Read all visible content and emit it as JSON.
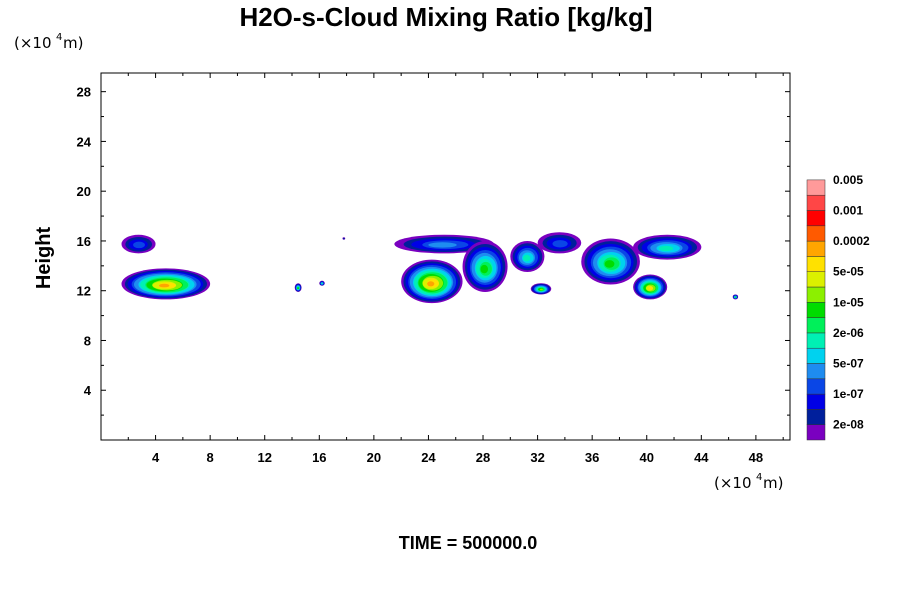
{
  "chart_data": {
    "type": "heatmap",
    "title": "H2O-s-Cloud Mixing Ratio [kg/kg]",
    "xlabel": "",
    "ylabel": "Height",
    "x_unit": {
      "prefix": "(×10",
      "exponent": "4",
      "suffix": " m)"
    },
    "y_unit": {
      "prefix": "(×10",
      "exponent": "4",
      "suffix": " m)"
    },
    "xlim": [
      0,
      50.5
    ],
    "ylim": [
      0,
      29.5
    ],
    "x_ticks": [
      4,
      8,
      12,
      16,
      20,
      24,
      28,
      32,
      36,
      40,
      44,
      48
    ],
    "y_ticks": [
      4,
      8,
      12,
      16,
      20,
      24,
      28
    ],
    "grid": false,
    "legend_position": "right",
    "colorbar": {
      "colors": [
        "#7a00c0",
        "#001f9c",
        "#0000e6",
        "#0a46e6",
        "#1e8cf0",
        "#00d2ef",
        "#00f0b4",
        "#00f05a",
        "#00dc00",
        "#8cf000",
        "#dcf000",
        "#ffe100",
        "#ffa500",
        "#ff5a00",
        "#ff0000",
        "#ff4646",
        "#ff9a9a"
      ],
      "labels": [
        "2e-08",
        "1e-07",
        "5e-07",
        "2e-06",
        "1e-05",
        "5e-05",
        "0.0002",
        "0.001",
        "0.005"
      ]
    },
    "regions": [
      {
        "x": [
          1.5,
          4.0
        ],
        "y": [
          15.0,
          16.5
        ],
        "peak_level": 3
      },
      {
        "x": [
          1.5,
          8.0
        ],
        "y": [
          11.3,
          13.8
        ],
        "peak_level": 12
      },
      {
        "x": [
          14.2,
          14.7
        ],
        "y": [
          11.9,
          12.6
        ],
        "peak_level": 8
      },
      {
        "x": [
          16.0,
          16.4
        ],
        "y": [
          12.4,
          12.8
        ],
        "peak_level": 6
      },
      {
        "x": [
          17.7,
          17.9
        ],
        "y": [
          16.1,
          16.3
        ],
        "peak_level": 1
      },
      {
        "x": [
          21.5,
          28.8
        ],
        "y": [
          15.0,
          16.5
        ],
        "peak_level": 4
      },
      {
        "x": [
          22.0,
          26.5
        ],
        "y": [
          11.0,
          14.5
        ],
        "peak_level": 12
      },
      {
        "x": [
          26.5,
          29.8
        ],
        "y": [
          11.9,
          16.0
        ],
        "peak_level": 8
      },
      {
        "x": [
          30.0,
          32.5
        ],
        "y": [
          13.5,
          16.0
        ],
        "peak_level": 6
      },
      {
        "x": [
          32.0,
          35.2
        ],
        "y": [
          15.0,
          16.7
        ],
        "peak_level": 3
      },
      {
        "x": [
          31.5,
          33.0
        ],
        "y": [
          11.7,
          12.6
        ],
        "peak_level": 9
      },
      {
        "x": [
          35.2,
          39.5
        ],
        "y": [
          12.5,
          16.2
        ],
        "peak_level": 8
      },
      {
        "x": [
          39.0,
          44.0
        ],
        "y": [
          14.5,
          16.5
        ],
        "peak_level": 6
      },
      {
        "x": [
          39.0,
          41.5
        ],
        "y": [
          11.3,
          13.3
        ],
        "peak_level": 11
      },
      {
        "x": [
          46.3,
          46.7
        ],
        "y": [
          11.3,
          11.7
        ],
        "peak_level": 7
      }
    ]
  },
  "footer": {
    "time_label": "TIME = 500000.0"
  }
}
